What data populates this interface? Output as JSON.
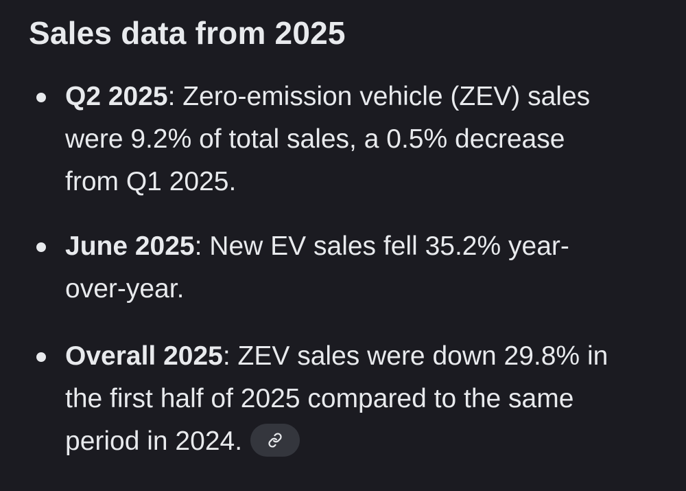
{
  "heading": "Sales data from 2025",
  "items": [
    {
      "term": "Q2 2025",
      "lines": [
        ": Zero-emission vehicle (ZEV) sales",
        "were 9.2% of total sales, a 0.5% decrease",
        "from Q1 2025."
      ]
    },
    {
      "term": "June 2025",
      "lines": [
        ": New EV sales fell 35.2% year-",
        "over-year."
      ]
    },
    {
      "term": "Overall 2025",
      "lines": [
        ": ZEV sales were down 29.8% in",
        "the first half of 2025 compared to the same",
        "period in 2024."
      ]
    }
  ],
  "source_link": {
    "icon": "link-icon"
  }
}
